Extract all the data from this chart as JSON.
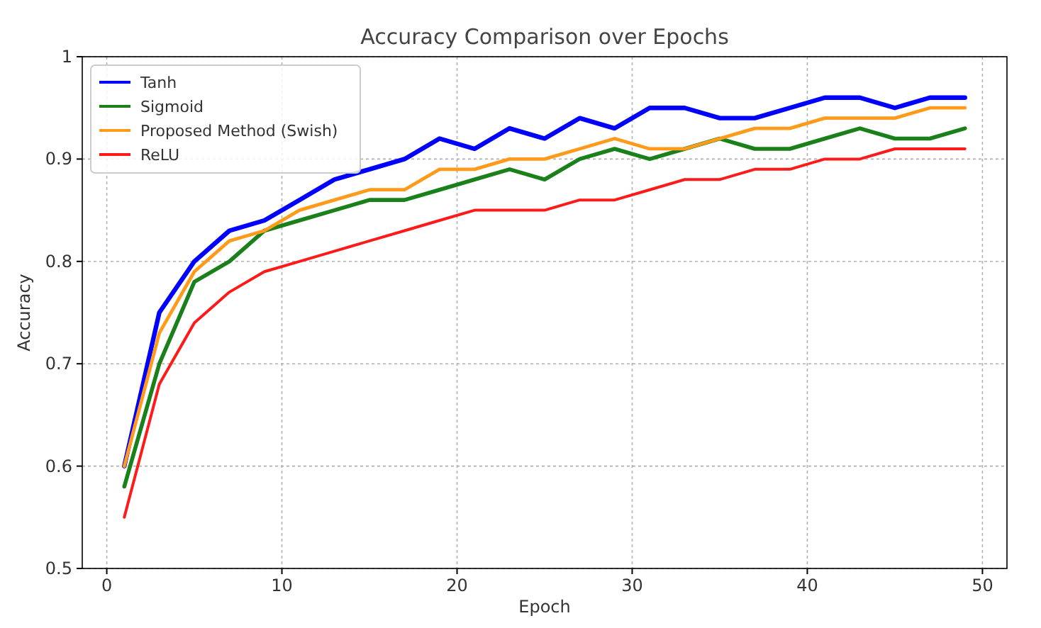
{
  "chart_data": {
    "type": "line",
    "title": "Accuracy Comparison over Epochs",
    "xlabel": "Epoch",
    "ylabel": "Accuracy",
    "x": [
      1,
      3,
      5,
      7,
      9,
      11,
      13,
      15,
      17,
      19,
      21,
      23,
      25,
      27,
      29,
      31,
      33,
      35,
      37,
      39,
      41,
      43,
      45,
      47,
      49
    ],
    "xlim": [
      -1.4,
      51.4
    ],
    "xticks": [
      0,
      10,
      20,
      30,
      40,
      50
    ],
    "ylim": [
      0.5,
      1.0
    ],
    "yticks": [
      0.5,
      0.6,
      0.7,
      0.8,
      0.9,
      1.0
    ],
    "grid": true,
    "legend": "top left",
    "line_style": "solid",
    "marker": "none",
    "series": [
      {
        "name": "Tanh",
        "color": "#0000ff",
        "values": [
          0.6,
          0.75,
          0.8,
          0.83,
          0.84,
          0.86,
          0.88,
          0.89,
          0.9,
          0.92,
          0.91,
          0.93,
          0.92,
          0.94,
          0.93,
          0.95,
          0.95,
          0.94,
          0.94,
          0.95,
          0.96,
          0.96,
          0.95,
          0.96,
          0.96
        ]
      },
      {
        "name": "Sigmoid",
        "color": "#1a801a",
        "values": [
          0.58,
          0.7,
          0.78,
          0.8,
          0.83,
          0.84,
          0.85,
          0.86,
          0.86,
          0.87,
          0.88,
          0.89,
          0.88,
          0.9,
          0.91,
          0.9,
          0.91,
          0.92,
          0.91,
          0.91,
          0.92,
          0.93,
          0.92,
          0.92,
          0.93
        ]
      },
      {
        "name": "Proposed Method (Swish)",
        "color": "#ff9a1a",
        "values": [
          0.6,
          0.73,
          0.79,
          0.82,
          0.83,
          0.85,
          0.86,
          0.87,
          0.87,
          0.89,
          0.89,
          0.9,
          0.9,
          0.91,
          0.92,
          0.91,
          0.91,
          0.92,
          0.93,
          0.93,
          0.94,
          0.94,
          0.94,
          0.95,
          0.95
        ]
      },
      {
        "name": "ReLU",
        "color": "#ff1a1a",
        "values": [
          0.55,
          0.68,
          0.74,
          0.77,
          0.79,
          0.8,
          0.81,
          0.82,
          0.83,
          0.84,
          0.85,
          0.85,
          0.85,
          0.86,
          0.86,
          0.87,
          0.88,
          0.88,
          0.89,
          0.89,
          0.9,
          0.9,
          0.91,
          0.91,
          0.91
        ]
      }
    ]
  }
}
